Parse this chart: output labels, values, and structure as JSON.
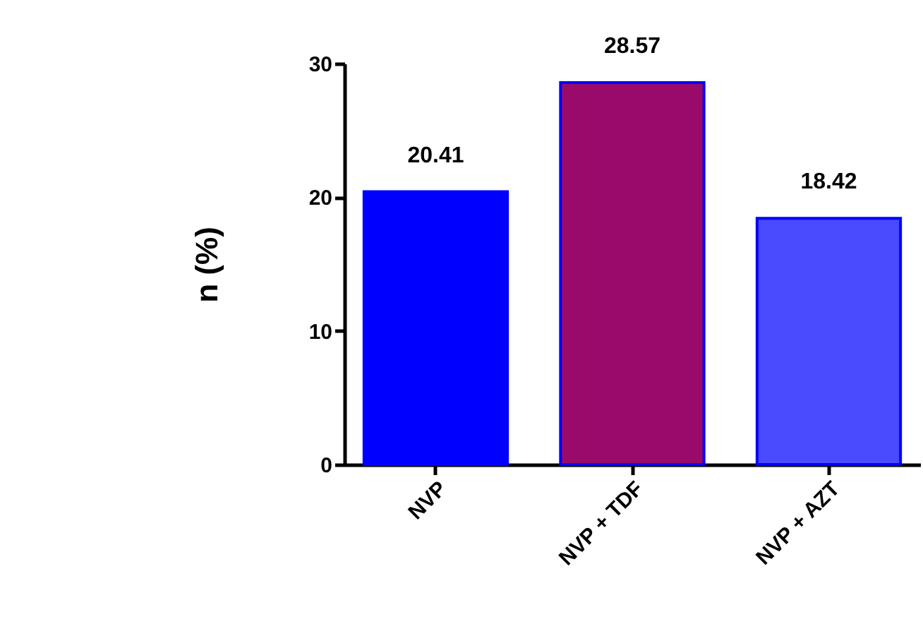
{
  "chart_data": {
    "type": "bar",
    "ylabel": "n (%)",
    "categories": [
      "NVP",
      "NVP + TDF",
      "NVP + AZT"
    ],
    "values": [
      20.41,
      28.57,
      18.42
    ],
    "colors": [
      "#0000ff",
      "#9a0a6a",
      "#4a4aff"
    ],
    "ylim": [
      0,
      30
    ],
    "yticks": [
      0,
      10,
      20,
      30
    ],
    "grid": false,
    "data_labels": true
  }
}
